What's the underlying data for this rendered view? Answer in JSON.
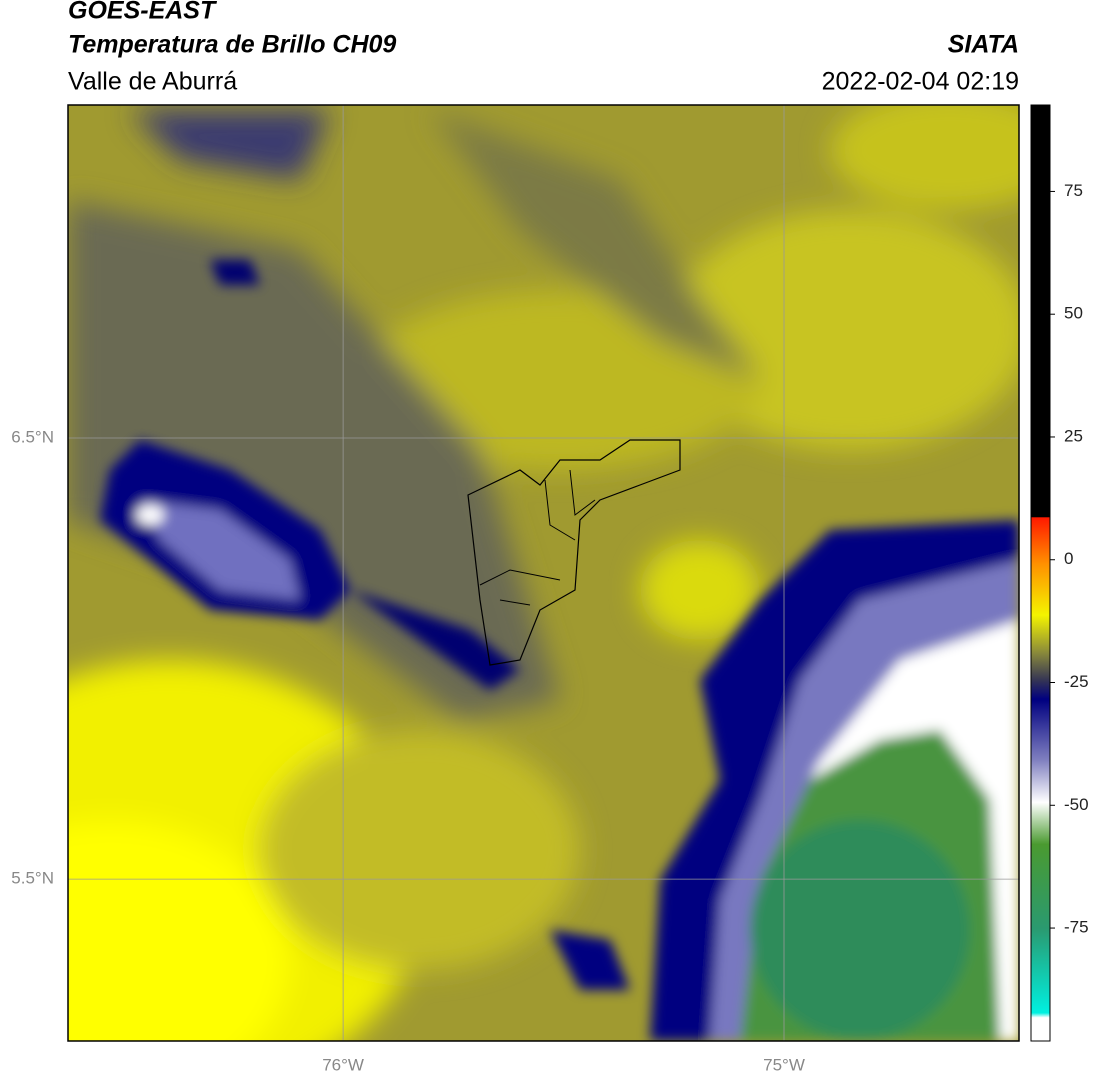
{
  "header": {
    "title": "GOES-EAST",
    "subtitle": "Temperatura de Brillo CH09",
    "region": "Valle de Aburrá",
    "source": "SIATA",
    "datetime": "2022-02-04 02:19"
  },
  "map": {
    "lonlim": [
      -76.624,
      -74.467
    ],
    "latlim": [
      5.133,
      7.255
    ],
    "lon_ticks": [
      {
        "value": -76,
        "label": "76°W"
      },
      {
        "value": -75,
        "label": "75°W"
      }
    ],
    "lat_ticks": [
      {
        "value": 6.5,
        "label": "6.5°N"
      },
      {
        "value": 5.5,
        "label": "5.5°N"
      }
    ],
    "grid": true
  },
  "colorbar": {
    "lim": [
      -98,
      92.6
    ],
    "ticks": [
      75,
      50,
      25,
      0,
      -25,
      -50,
      -75
    ]
  }
}
